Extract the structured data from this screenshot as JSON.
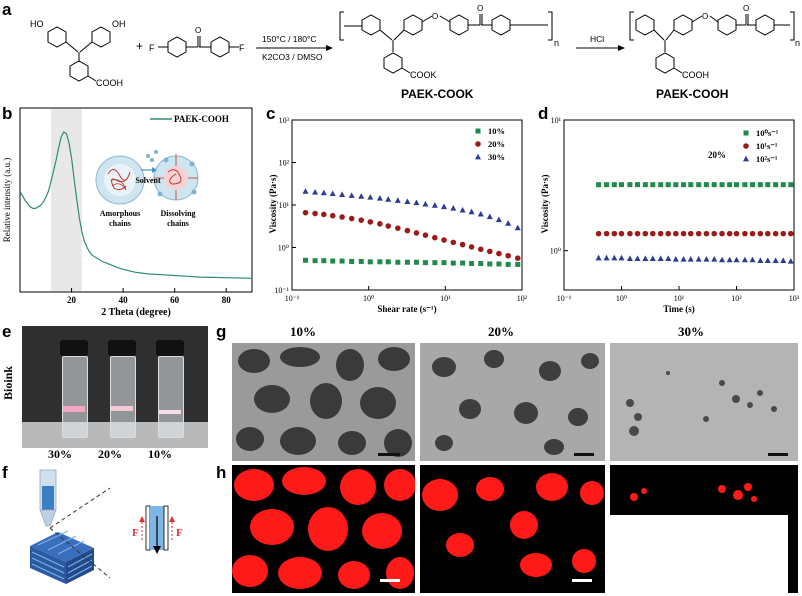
{
  "panels": {
    "a": "a",
    "b": "b",
    "c": "c",
    "d": "d",
    "e": "e",
    "f": "f",
    "g": "g",
    "h": "h"
  },
  "scheme": {
    "monomer1_oh1": "HO",
    "monomer1_oh2": "OH",
    "monomer1_cooh": "COOH",
    "plus": "+",
    "f_left": "F",
    "f_right": "F",
    "conditions_top": "150°C / 180°C",
    "conditions_bottom": "K2CO3 / DMSO",
    "repeat_n": "n",
    "cook": "COOK",
    "product1": "PAEK-COOK",
    "hcl": "HCl",
    "cooh": "COOH",
    "product2": "PAEK-COOH"
  },
  "panel_b": {
    "ylabel": "Relative intensity (a.u.)",
    "xlabel": "2 Theta (degree)",
    "legend": "PAEK-COOH",
    "label_solvent": "Solvent",
    "label_amorphous_1": "Amorphous",
    "label_amorphous_2": "chains",
    "label_dissolving_1": "Dissolving",
    "label_dissolving_2": "chains"
  },
  "panel_c": {
    "ylabel": "Viscosity (Pa·s)",
    "xlabel": "Shear rate (s⁻¹)"
  },
  "panel_d": {
    "ylabel": "Viscosity (Pa·s)",
    "xlabel": "Time (s)",
    "annotation": "20%"
  },
  "panel_e": {
    "side_label": "Bioink",
    "vial_labels": [
      "30%",
      "20%",
      "10%"
    ]
  },
  "panel_f": {
    "force_left": "F",
    "force_right": "F"
  },
  "panel_g": {
    "col_labels": [
      "10%",
      "20%",
      "30%"
    ]
  },
  "colors": {
    "xrd_line": "#2e8b7a",
    "series_green": "#1f8a4c",
    "series_red": "#9b1b1b",
    "series_blue": "#2c3d8f",
    "fluor_red": "#ff1a1a"
  },
  "chart_data": [
    {
      "type": "line",
      "panel": "b",
      "xlabel": "2 Theta (degree)",
      "ylabel": "Relative intensity (a.u.)",
      "xlim": [
        0,
        90
      ],
      "xticks": [
        20,
        40,
        60,
        80
      ],
      "highlight_range": [
        12,
        24
      ],
      "series": [
        {
          "name": "PAEK-COOH",
          "x": [
            0,
            2,
            4,
            5,
            6,
            7,
            8,
            9,
            10,
            11,
            12,
            13,
            14,
            15,
            16,
            17,
            18,
            19,
            20,
            21,
            22,
            23,
            24,
            25,
            26,
            27,
            28,
            30,
            32,
            35,
            38,
            40,
            45,
            50,
            55,
            60,
            65,
            70,
            75,
            80,
            85,
            90
          ],
          "y": [
            0.62,
            0.56,
            0.52,
            0.51,
            0.51,
            0.52,
            0.53,
            0.55,
            0.58,
            0.62,
            0.68,
            0.75,
            0.82,
            0.9,
            0.97,
            1.0,
            0.99,
            0.93,
            0.83,
            0.7,
            0.57,
            0.45,
            0.36,
            0.3,
            0.26,
            0.23,
            0.21,
            0.19,
            0.17,
            0.15,
            0.13,
            0.12,
            0.1,
            0.09,
            0.085,
            0.08,
            0.075,
            0.07,
            0.068,
            0.066,
            0.064,
            0.062
          ]
        }
      ]
    },
    {
      "type": "scatter",
      "panel": "c",
      "xlabel": "Shear rate (s⁻¹)",
      "ylabel": "Viscosity (Pa·s)",
      "xscale": "log",
      "yscale": "log",
      "xlim": [
        0.1,
        100
      ],
      "ylim": [
        0.1,
        1000
      ],
      "xticks": [
        "10⁻¹",
        "10⁰",
        "10¹",
        "10²"
      ],
      "yticks": [
        "10⁻¹",
        "10⁰",
        "10¹",
        "10²",
        "10³"
      ],
      "legend_position": "top-right",
      "series": [
        {
          "name": "10%",
          "marker": "square",
          "x": [
            0.15,
            0.2,
            0.26,
            0.34,
            0.45,
            0.6,
            0.8,
            1.05,
            1.4,
            1.8,
            2.4,
            3.2,
            4.2,
            5.5,
            7.3,
            9.6,
            12.7,
            16.8,
            22,
            29,
            38,
            50,
            66,
            88
          ],
          "y": [
            0.5,
            0.49,
            0.49,
            0.48,
            0.48,
            0.47,
            0.47,
            0.46,
            0.46,
            0.46,
            0.45,
            0.45,
            0.45,
            0.44,
            0.44,
            0.44,
            0.43,
            0.43,
            0.42,
            0.42,
            0.41,
            0.41,
            0.4,
            0.4
          ]
        },
        {
          "name": "20%",
          "marker": "circle",
          "x": [
            0.15,
            0.2,
            0.26,
            0.34,
            0.45,
            0.6,
            0.8,
            1.05,
            1.4,
            1.8,
            2.4,
            3.2,
            4.2,
            5.5,
            7.3,
            9.6,
            12.7,
            16.8,
            22,
            29,
            38,
            50,
            66,
            88
          ],
          "y": [
            6.6,
            6.3,
            6.0,
            5.6,
            5.2,
            4.8,
            4.4,
            4.0,
            3.6,
            3.2,
            2.85,
            2.5,
            2.2,
            1.95,
            1.7,
            1.5,
            1.32,
            1.17,
            1.03,
            0.91,
            0.81,
            0.72,
            0.64,
            0.56
          ]
        },
        {
          "name": "30%",
          "marker": "triangle",
          "x": [
            0.15,
            0.2,
            0.26,
            0.34,
            0.45,
            0.6,
            0.8,
            1.05,
            1.4,
            1.8,
            2.4,
            3.2,
            4.2,
            5.5,
            7.3,
            9.6,
            12.7,
            16.8,
            22,
            29,
            38,
            50,
            66,
            88
          ],
          "y": [
            21,
            20,
            19.3,
            18.5,
            17.6,
            16.8,
            16.0,
            15.2,
            14.4,
            13.6,
            12.8,
            12.0,
            11.3,
            10.5,
            9.8,
            9.1,
            8.4,
            7.6,
            6.9,
            6.1,
            5.3,
            4.5,
            3.7,
            2.9
          ]
        }
      ]
    },
    {
      "type": "scatter",
      "panel": "d",
      "xlabel": "Time (s)",
      "ylabel": "Viscosity (Pa·s)",
      "xscale": "log",
      "yscale": "log",
      "xlim": [
        0.1,
        1000
      ],
      "ylim": [
        0.5,
        10
      ],
      "xticks": [
        "10⁻¹",
        "10⁰",
        "10¹",
        "10²",
        "10³"
      ],
      "yticks": [
        "10⁰",
        "10¹"
      ],
      "legend_position": "top-right",
      "series": [
        {
          "name": "10⁰s⁻¹",
          "marker": "square",
          "x": [
            0.4,
            0.55,
            0.75,
            1,
            1.4,
            1.9,
            2.6,
            3.5,
            4.8,
            6.5,
            8.8,
            12,
            16,
            22,
            30,
            41,
            56,
            76,
            100,
            140,
            190,
            260,
            350,
            480,
            650,
            880
          ],
          "y": [
            3.2,
            3.2,
            3.2,
            3.2,
            3.2,
            3.2,
            3.2,
            3.2,
            3.2,
            3.2,
            3.2,
            3.2,
            3.2,
            3.2,
            3.2,
            3.2,
            3.2,
            3.2,
            3.2,
            3.2,
            3.2,
            3.2,
            3.2,
            3.2,
            3.2,
            3.2
          ]
        },
        {
          "name": "10¹s⁻¹",
          "marker": "circle",
          "x": [
            0.4,
            0.55,
            0.75,
            1,
            1.4,
            1.9,
            2.6,
            3.5,
            4.8,
            6.5,
            8.8,
            12,
            16,
            22,
            30,
            41,
            56,
            76,
            100,
            140,
            190,
            260,
            350,
            480,
            650,
            880
          ],
          "y": [
            1.35,
            1.35,
            1.35,
            1.35,
            1.35,
            1.35,
            1.35,
            1.35,
            1.35,
            1.35,
            1.35,
            1.35,
            1.35,
            1.35,
            1.35,
            1.35,
            1.35,
            1.35,
            1.35,
            1.35,
            1.35,
            1.35,
            1.35,
            1.35,
            1.35,
            1.35
          ]
        },
        {
          "name": "10²s⁻¹",
          "marker": "triangle",
          "x": [
            0.4,
            0.55,
            0.75,
            1,
            1.4,
            1.9,
            2.6,
            3.5,
            4.8,
            6.5,
            8.8,
            12,
            16,
            22,
            30,
            41,
            56,
            76,
            100,
            140,
            190,
            260,
            350,
            480,
            650,
            880
          ],
          "y": [
            0.88,
            0.88,
            0.88,
            0.88,
            0.87,
            0.87,
            0.87,
            0.87,
            0.87,
            0.87,
            0.86,
            0.86,
            0.86,
            0.86,
            0.86,
            0.86,
            0.85,
            0.85,
            0.85,
            0.85,
            0.85,
            0.84,
            0.84,
            0.84,
            0.84,
            0.83
          ]
        }
      ]
    }
  ]
}
